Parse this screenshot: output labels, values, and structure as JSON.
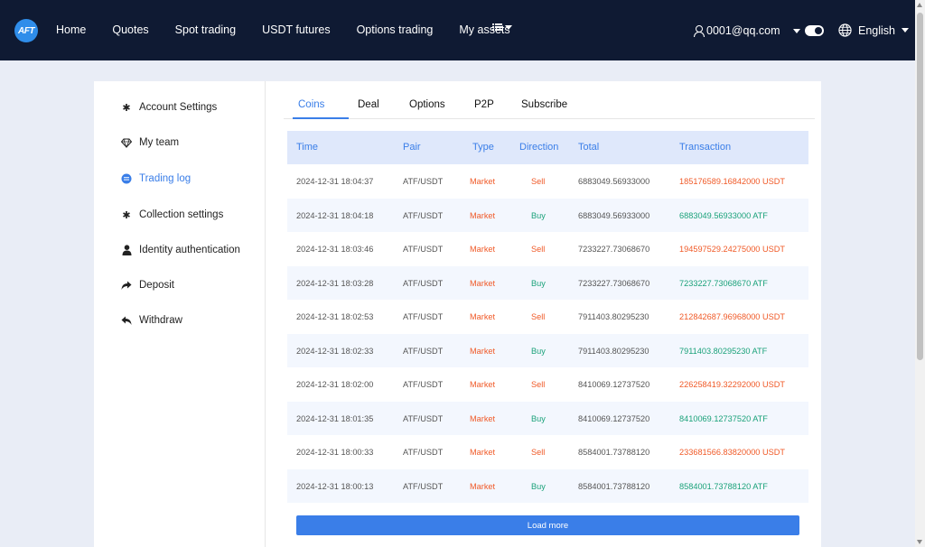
{
  "header": {
    "logo_text": "AFT",
    "nav": [
      {
        "label": "Home"
      },
      {
        "label": "Quotes"
      },
      {
        "label": "Spot trading"
      },
      {
        "label": "USDT futures"
      },
      {
        "label": "Options trading"
      },
      {
        "label": "My assets"
      }
    ],
    "user_email": "0001@qq.com",
    "language": "English"
  },
  "sidebar": {
    "items": [
      {
        "label": "Account Settings",
        "icon": "gear-icon"
      },
      {
        "label": "My team",
        "icon": "diamond-icon"
      },
      {
        "label": "Trading log",
        "icon": "list-icon",
        "active": true
      },
      {
        "label": "Collection settings",
        "icon": "gear-icon"
      },
      {
        "label": "Identity authentication",
        "icon": "person-icon"
      },
      {
        "label": "Deposit",
        "icon": "share-arrow-icon"
      },
      {
        "label": "Withdraw",
        "icon": "reply-arrow-icon"
      }
    ]
  },
  "tabs": [
    {
      "label": "Coins",
      "active": true
    },
    {
      "label": "Deal"
    },
    {
      "label": "Options"
    },
    {
      "label": "P2P"
    },
    {
      "label": "Subscribe"
    }
  ],
  "table": {
    "columns": [
      "Time",
      "Pair",
      "Type",
      "Direction",
      "Total",
      "Transaction"
    ],
    "rows": [
      {
        "time": "2024-12-31 18:04:37",
        "pair": "ATF/USDT",
        "type": "Market",
        "direction": "Sell",
        "total": "6883049.56933000",
        "transaction": "185176589.16842000 USDT"
      },
      {
        "time": "2024-12-31 18:04:18",
        "pair": "ATF/USDT",
        "type": "Market",
        "direction": "Buy",
        "total": "6883049.56933000",
        "transaction": "6883049.56933000 ATF"
      },
      {
        "time": "2024-12-31 18:03:46",
        "pair": "ATF/USDT",
        "type": "Market",
        "direction": "Sell",
        "total": "7233227.73068670",
        "transaction": "194597529.24275000 USDT"
      },
      {
        "time": "2024-12-31 18:03:28",
        "pair": "ATF/USDT",
        "type": "Market",
        "direction": "Buy",
        "total": "7233227.73068670",
        "transaction": "7233227.73068670 ATF"
      },
      {
        "time": "2024-12-31 18:02:53",
        "pair": "ATF/USDT",
        "type": "Market",
        "direction": "Sell",
        "total": "7911403.80295230",
        "transaction": "212842687.96968000 USDT"
      },
      {
        "time": "2024-12-31 18:02:33",
        "pair": "ATF/USDT",
        "type": "Market",
        "direction": "Buy",
        "total": "7911403.80295230",
        "transaction": "7911403.80295230 ATF"
      },
      {
        "time": "2024-12-31 18:02:00",
        "pair": "ATF/USDT",
        "type": "Market",
        "direction": "Sell",
        "total": "8410069.12737520",
        "transaction": "226258419.32292000 USDT"
      },
      {
        "time": "2024-12-31 18:01:35",
        "pair": "ATF/USDT",
        "type": "Market",
        "direction": "Buy",
        "total": "8410069.12737520",
        "transaction": "8410069.12737520 ATF"
      },
      {
        "time": "2024-12-31 18:00:33",
        "pair": "ATF/USDT",
        "type": "Market",
        "direction": "Sell",
        "total": "8584001.73788120",
        "transaction": "233681566.83820000 USDT"
      },
      {
        "time": "2024-12-31 18:00:13",
        "pair": "ATF/USDT",
        "type": "Market",
        "direction": "Buy",
        "total": "8584001.73788120",
        "transaction": "8584001.73788120 ATF"
      }
    ]
  },
  "load_more_label": "Load more",
  "colors": {
    "topbar": "#0f1a33",
    "accent": "#3a7ee8",
    "sell": "#f05a28",
    "buy": "#1ba27a",
    "header_bg": "#dfe8fb"
  }
}
